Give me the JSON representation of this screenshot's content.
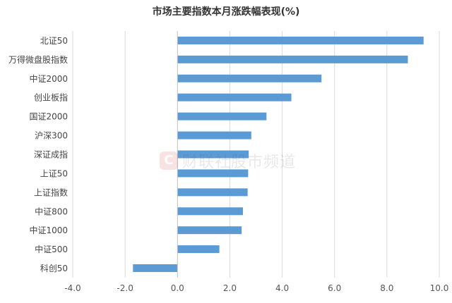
{
  "chart_data": {
    "type": "bar",
    "orientation": "horizontal",
    "title": "市场主要指数本月涨跌幅表现(%)",
    "categories": [
      "北证50",
      "万得微盘股指数",
      "中证2000",
      "创业板指",
      "国证2000",
      "沪深300",
      "深证成指",
      "上证50",
      "上证指数",
      "中证800",
      "中证1000",
      "中证500",
      "科创50"
    ],
    "values": [
      9.4,
      8.8,
      5.5,
      4.35,
      3.4,
      2.82,
      2.72,
      2.7,
      2.68,
      2.5,
      2.45,
      1.6,
      -1.7
    ],
    "xlim": [
      -4.0,
      10.0
    ],
    "xticks": [
      "-4.0",
      "-2.0",
      "0.0",
      "2.0",
      "4.0",
      "6.0",
      "8.0",
      "10.0"
    ],
    "grid": true,
    "bar_color": "#5b9bd5",
    "gridline_color": "#d9d9d9"
  },
  "watermark": {
    "logo_letter": "C",
    "text": "财联社股市频道"
  }
}
